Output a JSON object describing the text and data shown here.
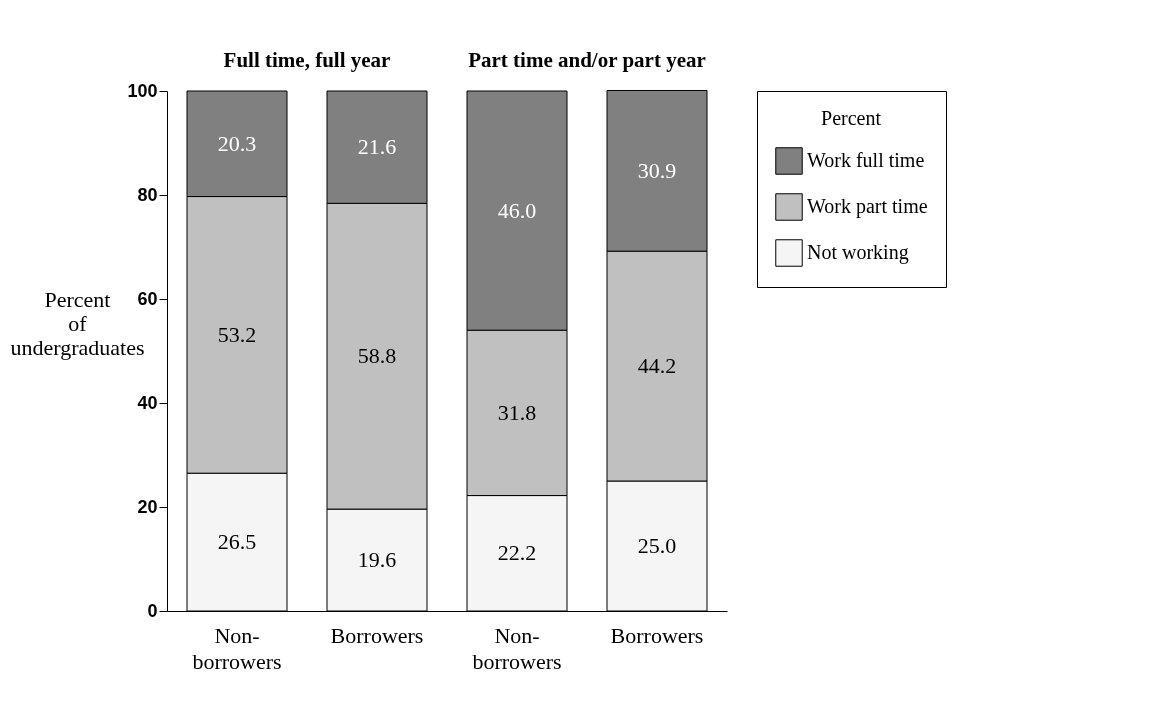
{
  "chart_data": {
    "type": "bar",
    "stacked": true,
    "ylabel": "Percent of undergraduates",
    "legend_title": "Percent",
    "legend": "top right",
    "categories": [
      "Non-\nborrowers",
      "Borrowers",
      "Non-\nborrowers",
      "Borrowers"
    ],
    "series": [
      {
        "name": "Not working",
        "color": "#f5f5f5",
        "values": [
          26.5,
          19.6,
          22.2,
          25.0
        ],
        "value_labels": [
          "26.5",
          "19.6",
          "22.2",
          "25.0"
        ]
      },
      {
        "name": "Work part time",
        "color": "#c0c0c0",
        "values": [
          53.2,
          58.8,
          31.8,
          44.2
        ],
        "value_labels": [
          "53.2",
          "58.8",
          "31.8",
          "44.2"
        ]
      },
      {
        "name": "Work full time",
        "color": "#808080",
        "values": [
          20.3,
          21.6,
          46.0,
          30.9
        ],
        "value_labels": [
          "20.3",
          "21.6",
          "46.0",
          "30.9"
        ]
      }
    ],
    "ylim": [
      0,
      100
    ],
    "yticks": [
      0,
      20,
      40,
      60,
      80,
      100
    ],
    "grid": false,
    "annotations": [
      "Full time, full year",
      "Part time and/or part year"
    ]
  }
}
